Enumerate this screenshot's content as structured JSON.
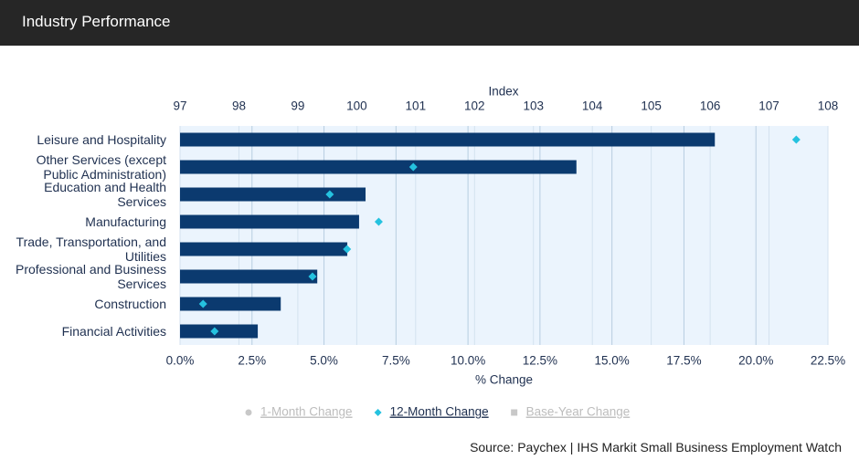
{
  "header": {
    "title": "Industry Performance"
  },
  "chart_data": {
    "type": "bar",
    "categories": [
      "Leisure and Hospitality",
      "Other Services (except Public Administration)",
      "Education and Health Services",
      "Manufacturing",
      "Trade, Transportation, and Utilities",
      "Professional and Business Services",
      "Construction",
      "Financial Activities"
    ],
    "series": [
      {
        "color": "#0b3a6f",
        "axis": "x2",
        "values": [
          106.08,
          103.73,
          100.15,
          100.04,
          99.84,
          99.33,
          98.71,
          98.32
        ]
      },
      {
        "name": "12-Month Change",
        "color": "#25c2df",
        "marker": "diamond",
        "values": [
          21.4,
          8.1,
          5.2,
          6.9,
          5.8,
          4.6,
          0.8,
          1.2
        ]
      }
    ],
    "legend": [
      {
        "name": "1-Month Change",
        "active": false,
        "marker": "circle"
      },
      {
        "name": "12-Month Change",
        "active": true,
        "marker": "diamond"
      },
      {
        "name": "Base-Year Change",
        "active": false,
        "marker": "square"
      }
    ],
    "xlabel": "% Change",
    "x2label": "Index",
    "xlim": [
      0,
      22.5
    ],
    "xticks": [
      {
        "value": 0,
        "label": "0.0%"
      },
      {
        "value": 2.5,
        "label": "2.5%"
      },
      {
        "value": 5,
        "label": "5.0%"
      },
      {
        "value": 7.5,
        "label": "7.5%"
      },
      {
        "value": 10,
        "label": "10.0%"
      },
      {
        "value": 12.5,
        "label": "12.5%"
      },
      {
        "value": 15,
        "label": "15.0%"
      },
      {
        "value": 17.5,
        "label": "17.5%"
      },
      {
        "value": 20,
        "label": "20.0%"
      },
      {
        "value": 22.5,
        "label": "22.5%"
      }
    ],
    "x2lim": [
      97,
      108
    ],
    "x2ticks": [
      97,
      98,
      99,
      100,
      101,
      102,
      103,
      104,
      105,
      106,
      107,
      108
    ],
    "grid": true,
    "source": "Source: Paychex | IHS Markit Small Business Employment Watch"
  }
}
